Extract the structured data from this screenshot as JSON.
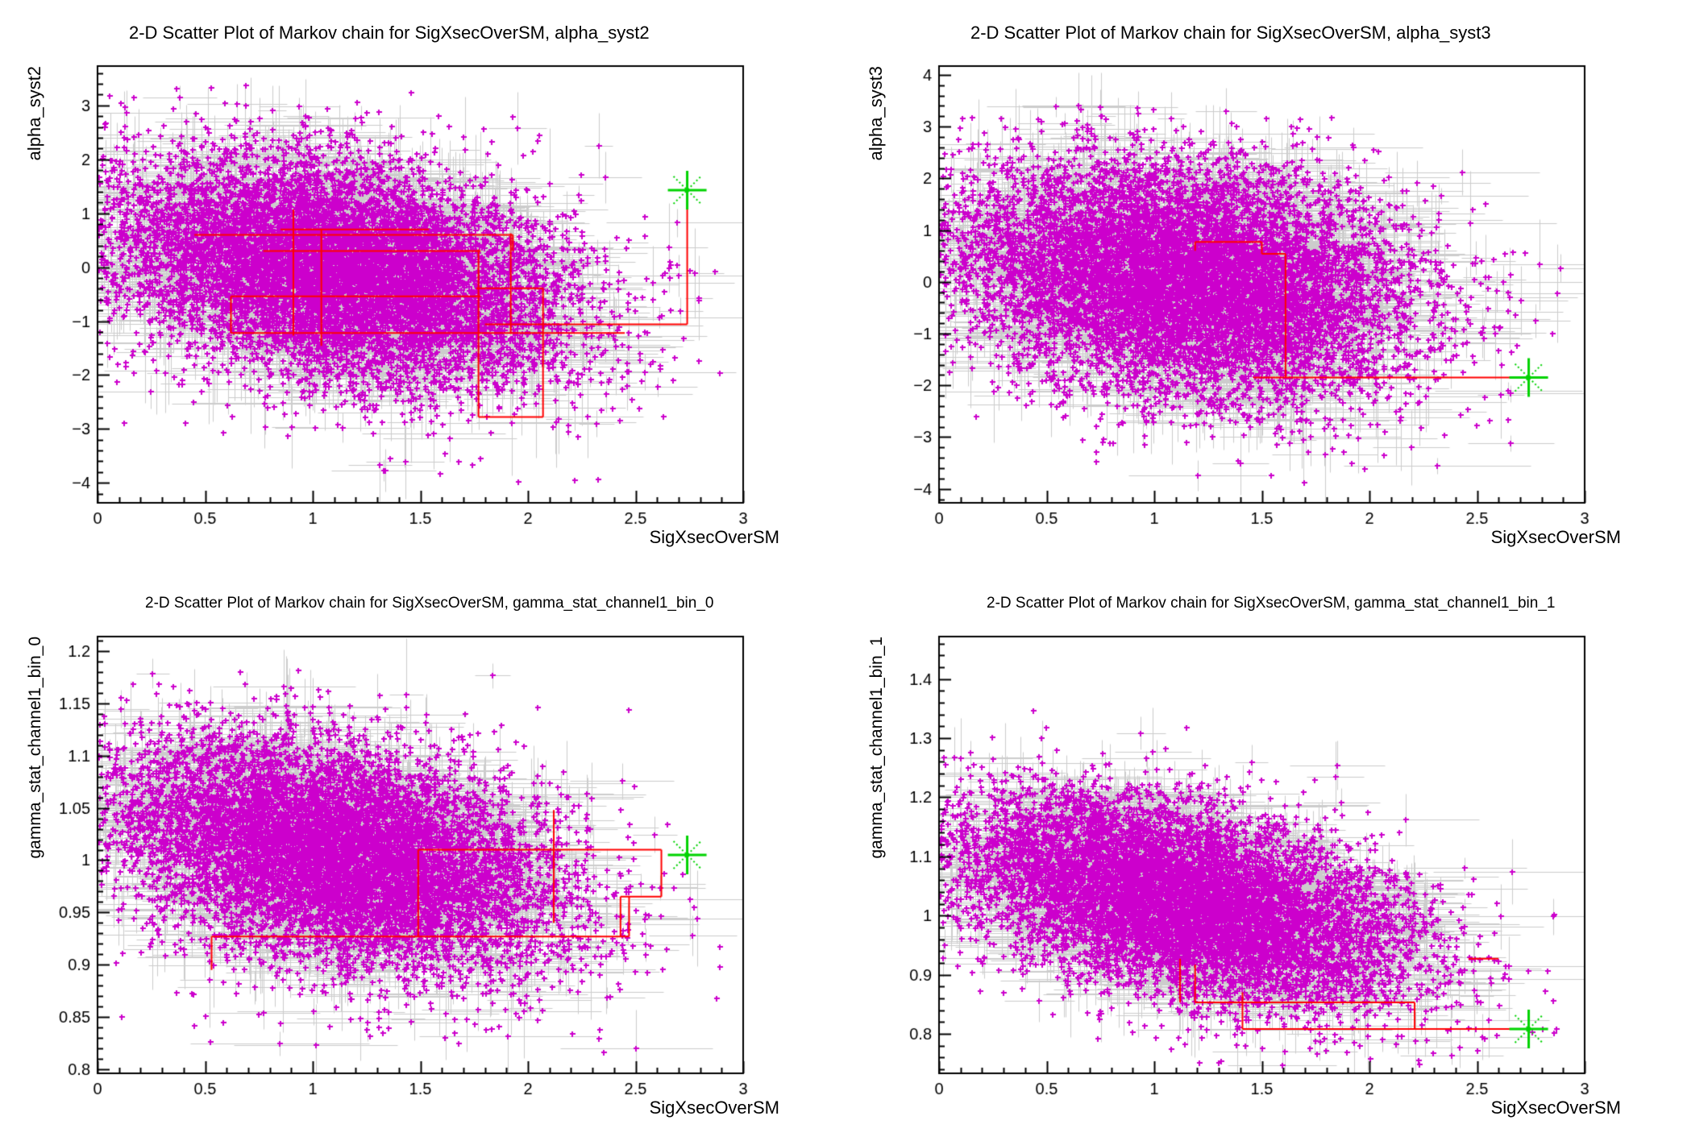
{
  "figure": {
    "background": "#ffffff",
    "kind": "ROOT canvas divided in 4 pads, MCMC posterior scatter plots"
  },
  "colors": {
    "points": "#cc00cc",
    "error_bars": "#cccccc",
    "chain_path": "#ff0000",
    "start_marker": "#00d300",
    "axis": "#000000",
    "text": "#000000"
  },
  "chart_data": [
    {
      "type": "scatter",
      "title": "2-D Scatter Plot of Markov chain for SigXsecOverSM, alpha_syst2",
      "xlabel": "SigXsecOverSM",
      "ylabel": "alpha_syst2",
      "x_range": [
        0,
        3
      ],
      "y_range": [
        -4.37,
        3.73
      ],
      "x_ticks": {
        "values": [
          0,
          0.5,
          1,
          1.5,
          2,
          2.5,
          3
        ],
        "labels": [
          "0",
          "0.5",
          "1",
          "1.5",
          "2",
          "2.5",
          "3"
        ],
        "minor_step": 0.1
      },
      "y_ticks": {
        "values": [
          -4,
          -3,
          -2,
          -1,
          0,
          1,
          2,
          3
        ],
        "labels": [
          "−4",
          "−3",
          "−2",
          "−1",
          "0",
          "1",
          "2",
          "3"
        ],
        "minor_step": 0.2
      },
      "grid": false,
      "cloud": {
        "distribution": "gaussian",
        "n": 9500,
        "seed": 11,
        "mean": [
          1.12,
          -0.05
        ],
        "sigma": [
          0.53,
          1.05
        ],
        "rho": -0.32,
        "clip": [
          0.005,
          2.95,
          -4.25,
          3.45
        ],
        "bars": 2400,
        "xerr": [
          0.06,
          0.45
        ],
        "yerr": [
          0.15,
          1.05
        ]
      },
      "start_point": {
        "x": 2.74,
        "y": 1.43,
        "marker": "green-asterisk"
      },
      "path_segments": [
        [
          2.74,
          1.43,
          2.74,
          -1.06
        ],
        [
          1.8,
          -1.06,
          2.74,
          -1.06
        ],
        [
          0.62,
          -1.22,
          2.45,
          -1.22
        ],
        [
          0.62,
          -1.22,
          0.62,
          -0.54
        ],
        [
          0.62,
          -0.54,
          1.78,
          -0.54
        ],
        [
          0.45,
          0.6,
          1.93,
          0.6
        ],
        [
          0.85,
          0.7,
          1.54,
          0.7
        ],
        [
          0.77,
          0.3,
          1.78,
          0.3
        ],
        [
          0.91,
          1.07,
          0.91,
          -1.27
        ],
        [
          1.04,
          0.7,
          1.04,
          -1.46
        ],
        [
          1.77,
          0.33,
          1.77,
          -2.78
        ],
        [
          1.77,
          -2.78,
          2.07,
          -2.78
        ],
        [
          2.07,
          -0.39,
          2.07,
          -2.78
        ],
        [
          1.76,
          -0.39,
          2.07,
          -0.39
        ],
        [
          1.92,
          0.63,
          1.92,
          -1.24
        ],
        [
          1.93,
          0.6,
          1.93,
          0.3
        ]
      ]
    },
    {
      "type": "scatter",
      "title": "2-D Scatter Plot of Markov chain for SigXsecOverSM, alpha_syst3",
      "xlabel": "SigXsecOverSM",
      "ylabel": "alpha_syst3",
      "x_range": [
        0,
        3
      ],
      "y_range": [
        -4.27,
        4.17
      ],
      "x_ticks": {
        "values": [
          0,
          0.5,
          1,
          1.5,
          2,
          2.5,
          3
        ],
        "labels": [
          "0",
          "0.5",
          "1",
          "1.5",
          "2",
          "2.5",
          "3"
        ],
        "minor_step": 0.1
      },
      "y_ticks": {
        "values": [
          -4,
          -3,
          -2,
          -1,
          0,
          1,
          2,
          3,
          4
        ],
        "labels": [
          "−4",
          "−3",
          "−2",
          "−1",
          "0",
          "1",
          "2",
          "3",
          "4"
        ],
        "minor_step": 0.2
      },
      "grid": false,
      "cloud": {
        "distribution": "gaussian",
        "n": 9500,
        "seed": 22,
        "mean": [
          1.13,
          0.05
        ],
        "sigma": [
          0.53,
          1.12
        ],
        "rho": -0.22,
        "clip": [
          0.005,
          2.95,
          -3.95,
          3.45
        ],
        "bars": 2400,
        "xerr": [
          0.06,
          0.45
        ],
        "yerr": [
          0.15,
          1.1
        ]
      },
      "start_point": {
        "x": 2.74,
        "y": -1.85,
        "marker": "green-asterisk"
      },
      "path_segments": [
        [
          1.46,
          -1.85,
          2.74,
          -1.85
        ],
        [
          1.61,
          0.54,
          1.61,
          -1.85
        ],
        [
          1.5,
          0.54,
          1.61,
          0.54
        ],
        [
          1.5,
          0.77,
          1.5,
          0.54
        ],
        [
          1.19,
          0.77,
          1.5,
          0.77
        ],
        [
          1.19,
          0.77,
          1.19,
          0.6
        ]
      ]
    },
    {
      "type": "scatter",
      "title": "2-D Scatter Plot of Markov chain for SigXsecOverSM, gamma_stat_channel1_bin_0",
      "xlabel": "SigXsecOverSM",
      "ylabel": "gamma_stat_channel1_bin_0",
      "x_range": [
        0,
        3
      ],
      "y_range": [
        0.796,
        1.214
      ],
      "x_ticks": {
        "values": [
          0,
          0.5,
          1,
          1.5,
          2,
          2.5,
          3
        ],
        "labels": [
          "0",
          "0.5",
          "1",
          "1.5",
          "2",
          "2.5",
          "3"
        ],
        "minor_step": 0.1
      },
      "y_ticks": {
        "values": [
          0.8,
          0.85,
          0.9,
          0.95,
          1,
          1.05,
          1.1,
          1.15,
          1.2
        ],
        "labels": [
          "0.8",
          "0.85",
          "0.9",
          "0.95",
          "1",
          "1.05",
          "1.1",
          "1.15",
          "1.2"
        ],
        "minor_step": 0.01
      },
      "grid": false,
      "cloud": {
        "distribution": "gaussian",
        "n": 9000,
        "seed": 33,
        "mean": [
          1.1,
          1.006
        ],
        "sigma": [
          0.52,
          0.056
        ],
        "rho": -0.35,
        "clip": [
          0.005,
          2.92,
          0.802,
          1.19
        ],
        "bars": 2300,
        "xerr": [
          0.06,
          0.45
        ],
        "yerr": [
          0.008,
          0.055
        ]
      },
      "start_point": {
        "x": 2.74,
        "y": 1.005,
        "marker": "green-asterisk"
      },
      "path_segments": [
        [
          1.49,
          1.01,
          2.62,
          1.01
        ],
        [
          2.62,
          1.01,
          2.62,
          0.965
        ],
        [
          2.43,
          0.965,
          2.62,
          0.965
        ],
        [
          2.43,
          0.965,
          2.43,
          0.927
        ],
        [
          0.53,
          0.927,
          2.47,
          0.927
        ],
        [
          1.49,
          1.01,
          1.49,
          0.927
        ],
        [
          2.12,
          1.048,
          2.12,
          0.94
        ],
        [
          0.53,
          0.927,
          0.53,
          0.895
        ],
        [
          2.47,
          0.965,
          2.47,
          0.927
        ]
      ]
    },
    {
      "type": "scatter",
      "title": "2-D Scatter Plot of Markov chain for SigXsecOverSM, gamma_stat_channel1_bin_1",
      "xlabel": "SigXsecOverSM",
      "ylabel": "gamma_stat_channel1_bin_1",
      "x_range": [
        0,
        3
      ],
      "y_range": [
        0.733,
        1.472
      ],
      "x_ticks": {
        "values": [
          0,
          0.5,
          1,
          1.5,
          2,
          2.5,
          3
        ],
        "labels": [
          "0",
          "0.5",
          "1",
          "1.5",
          "2",
          "2.5",
          "3"
        ],
        "minor_step": 0.1
      },
      "y_ticks": {
        "values": [
          0.8,
          0.9,
          1,
          1.1,
          1.2,
          1.3,
          1.4
        ],
        "labels": [
          "0.8",
          "0.9",
          "1",
          "1.1",
          "1.2",
          "1.3",
          "1.4"
        ],
        "minor_step": 0.02
      },
      "grid": false,
      "cloud": {
        "distribution": "gaussian",
        "n": 9000,
        "seed": 44,
        "mean": [
          1.12,
          1.025
        ],
        "sigma": [
          0.53,
          0.088
        ],
        "rho": -0.45,
        "clip": [
          0.005,
          2.95,
          0.745,
          1.44
        ],
        "bars": 2300,
        "xerr": [
          0.06,
          0.45
        ],
        "yerr": [
          0.012,
          0.085
        ]
      },
      "start_point": {
        "x": 2.74,
        "y": 0.808,
        "marker": "green-asterisk"
      },
      "path_segments": [
        [
          1.41,
          0.808,
          2.74,
          0.808
        ],
        [
          1.19,
          0.853,
          2.21,
          0.853
        ],
        [
          1.19,
          0.917,
          1.19,
          0.853
        ],
        [
          2.21,
          0.853,
          2.21,
          0.808
        ],
        [
          1.12,
          0.927,
          1.12,
          0.853
        ],
        [
          2.46,
          0.927,
          2.6,
          0.927
        ],
        [
          1.41,
          0.87,
          1.41,
          0.808
        ]
      ]
    }
  ]
}
